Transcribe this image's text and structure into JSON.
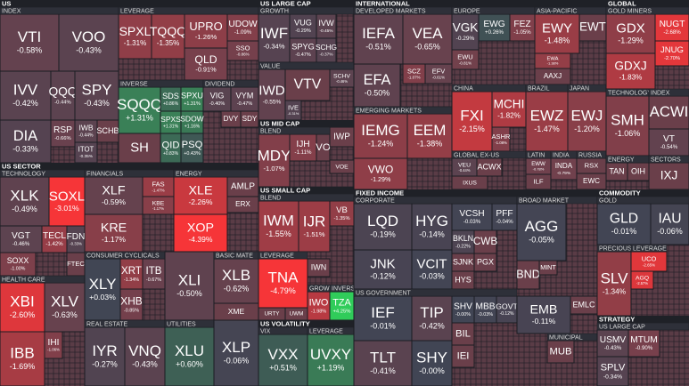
{
  "chart_data": {
    "type": "treemap",
    "sections": [
      {
        "title": "US",
        "groups": [
          {
            "name": "INDEX",
            "tiles": [
              {
                "ticker": "VTI",
                "change": "-0.58%"
              },
              {
                "ticker": "VOO",
                "change": "-0.43%"
              },
              {
                "ticker": "IVV",
                "change": "-0.42%"
              },
              {
                "ticker": "QQQ",
                "change": "-0.44%"
              },
              {
                "ticker": "SPY",
                "change": "-0.43%"
              },
              {
                "ticker": "DIA",
                "change": "-0.33%"
              },
              {
                "ticker": "RSP",
                "change": "-0.66%"
              },
              {
                "ticker": "IWB",
                "change": "-0.44%"
              },
              {
                "ticker": "SCHB"
              },
              {
                "ticker": "ITOT",
                "change": "-0.35%"
              }
            ]
          },
          {
            "name": "LEVERAGE",
            "tiles": [
              {
                "ticker": "SPXL",
                "change": "-1.31%"
              },
              {
                "ticker": "TQQQ",
                "change": "-1.35%"
              },
              {
                "ticker": "UPRO",
                "change": "-1.26%"
              },
              {
                "ticker": "UDOW",
                "change": "-1.09%"
              },
              {
                "ticker": "QLD",
                "change": "-0.91%"
              },
              {
                "ticker": "SSO",
                "change": "-0.86%"
              }
            ]
          },
          {
            "name": "INVERSE",
            "tiles": [
              {
                "ticker": "SQQQ",
                "change": "+1.31%"
              },
              {
                "ticker": "SH"
              },
              {
                "ticker": "SDS",
                "change": "+0.86%"
              },
              {
                "ticker": "SPXU",
                "change": "+1.31%"
              },
              {
                "ticker": "SPXS",
                "change": "+1.31%"
              },
              {
                "ticker": "SDOW",
                "change": "+1.16%"
              },
              {
                "ticker": "QID",
                "change": "+0.83%"
              },
              {
                "ticker": "PSQ",
                "change": "+0.43%"
              }
            ]
          },
          {
            "name": "DIVIDEND",
            "tiles": [
              {
                "ticker": "VIG",
                "change": "-0.40%"
              },
              {
                "ticker": "VYM",
                "change": "-0.47%"
              },
              {
                "ticker": "DVY"
              },
              {
                "ticker": "SDY"
              }
            ]
          }
        ]
      },
      {
        "title": "US SECTOR",
        "groups": [
          {
            "name": "TECHNOLOGY",
            "tiles": [
              {
                "ticker": "XLK",
                "change": "-0.49%"
              },
              {
                "ticker": "SOXL",
                "change": "-3.01%"
              },
              {
                "ticker": "VGT",
                "change": "-0.46%"
              },
              {
                "ticker": "TECL",
                "change": "-1.42%"
              },
              {
                "ticker": "FDN",
                "change": "-0.33%"
              },
              {
                "ticker": "SOXX",
                "change": "-1.00%"
              },
              {
                "ticker": "FTEC"
              }
            ]
          },
          {
            "name": "FINANCIALS",
            "tiles": [
              {
                "ticker": "XLF",
                "change": "-0.59%"
              },
              {
                "ticker": "KRE",
                "change": "-1.17%"
              },
              {
                "ticker": "FAS",
                "change": "-1.47%"
              },
              {
                "ticker": "KBE",
                "change": "-1.17%"
              }
            ]
          },
          {
            "name": "ENERGY",
            "tiles": [
              {
                "ticker": "XLE",
                "change": "-2.26%"
              },
              {
                "ticker": "XOP",
                "change": "-4.39%"
              },
              {
                "ticker": "AMLP"
              },
              {
                "ticker": "ERX"
              }
            ]
          },
          {
            "name": "HEALTH CARE",
            "tiles": [
              {
                "ticker": "XBI",
                "change": "-2.60%"
              },
              {
                "ticker": "XLV",
                "change": "-0.63%"
              },
              {
                "ticker": "IBB",
                "change": "-1.69%"
              },
              {
                "ticker": "IHI",
                "change": "-1.06%"
              }
            ]
          },
          {
            "name": "CONSUMER CYCLICALS",
            "tiles": [
              {
                "ticker": "XLY",
                "change": "+0.03%"
              },
              {
                "ticker": "XRT",
                "change": "-1.34%"
              },
              {
                "ticker": "ITB",
                "change": "-0.67%"
              },
              {
                "ticker": "XHB",
                "change": "-0.85%"
              }
            ]
          },
          {
            "tiles": [
              {
                "ticker": "XLI",
                "change": "-0.50%"
              }
            ]
          },
          {
            "name": "BASIC MATE",
            "tiles": [
              {
                "ticker": "XLB",
                "change": "-0.62%"
              },
              {
                "ticker": "XME"
              }
            ]
          },
          {
            "name": "REAL ESTATE",
            "tiles": [
              {
                "ticker": "IYR",
                "change": "-0.27%"
              },
              {
                "ticker": "VNQ",
                "change": "-0.43%"
              }
            ]
          },
          {
            "name": "UTILITIES",
            "tiles": [
              {
                "ticker": "XLU",
                "change": "+0.60%"
              }
            ]
          },
          {
            "tiles": [
              {
                "ticker": "XLP",
                "change": "-0.06%"
              }
            ]
          }
        ]
      },
      {
        "title": "US LARGE CAP",
        "groups": [
          {
            "name": "GROWTH",
            "tiles": [
              {
                "ticker": "IWF",
                "change": "-0.34%"
              },
              {
                "ticker": "VUG",
                "change": "-0.29%"
              },
              {
                "ticker": "IVW",
                "change": "-0.45%"
              },
              {
                "ticker": "SPYG",
                "change": "-0.47%"
              },
              {
                "ticker": "SCHG",
                "change": "-0.37%"
              }
            ]
          },
          {
            "name": "VALUE",
            "tiles": [
              {
                "ticker": "IWD",
                "change": "-0.55%"
              },
              {
                "ticker": "VTV"
              },
              {
                "ticker": "IVE",
                "change": "-0.31%"
              },
              {
                "ticker": "SCHV",
                "change": "-0.46%"
              }
            ]
          }
        ]
      },
      {
        "title": "US MID CAP",
        "groups": [
          {
            "name": "BLEND",
            "tiles": [
              {
                "ticker": "MDY",
                "change": "-1.07%"
              },
              {
                "ticker": "IJH",
                "change": "-1.11%"
              },
              {
                "ticker": "VO"
              },
              {
                "ticker": "IWP"
              },
              {
                "ticker": "VOE"
              }
            ]
          }
        ]
      },
      {
        "title": "US SMALL CAP",
        "groups": [
          {
            "name": "BLEND",
            "tiles": [
              {
                "ticker": "IWM",
                "change": "-1.55%"
              },
              {
                "ticker": "IJR",
                "change": "-1.51%"
              },
              {
                "ticker": "VB",
                "change": "-1.35%"
              }
            ]
          },
          {
            "name": "LEVERAGE",
            "tiles": [
              {
                "ticker": "TNA",
                "change": "-4.79%"
              },
              {
                "ticker": "URTY"
              },
              {
                "ticker": "UWM"
              }
            ]
          },
          {
            "tiles": [
              {
                "ticker": "IWN"
              }
            ]
          },
          {
            "name": "GROWTH",
            "tiles": [
              {
                "ticker": "IWO",
                "change": "-1.98%"
              }
            ]
          },
          {
            "name": "INVERS",
            "tiles": [
              {
                "ticker": "TZA",
                "change": "+4.25%"
              }
            ]
          }
        ]
      },
      {
        "title": "US VOLATILITY",
        "groups": [
          {
            "name": "VIX",
            "tiles": [
              {
                "ticker": "VXX",
                "change": "+0.51%"
              }
            ]
          },
          {
            "name": "LEVERAGE",
            "tiles": [
              {
                "ticker": "UVXY",
                "change": "+1.19%"
              }
            ]
          }
        ]
      },
      {
        "title": "INTERNATIONAL",
        "groups": [
          {
            "name": "DEVELOPED MARKETS",
            "tiles": [
              {
                "ticker": "IEFA",
                "change": "-0.51%"
              },
              {
                "ticker": "VEA",
                "change": "-0.65%"
              },
              {
                "ticker": "EFA",
                "change": "-0.50%"
              },
              {
                "ticker": "SCZ",
                "change": "-1.07%"
              },
              {
                "ticker": "EFV",
                "change": "-0.61%"
              }
            ]
          },
          {
            "name": "EMERGING MARKETS",
            "tiles": [
              {
                "ticker": "IEMG",
                "change": "-1.24%"
              },
              {
                "ticker": "EEM",
                "change": "-1.38%"
              },
              {
                "ticker": "VWO",
                "change": "-1.29%"
              }
            ]
          },
          {
            "name": "EUROPE",
            "tiles": [
              {
                "ticker": "VGK",
                "change": "-0.29%"
              },
              {
                "ticker": "EWG",
                "change": "+0.26%"
              },
              {
                "ticker": "FEZ",
                "change": "-1.05%"
              },
              {
                "ticker": "EWU",
                "change": "-0.81%"
              }
            ]
          },
          {
            "name": "ASIA-PACIFIC",
            "tiles": [
              {
                "ticker": "EWY",
                "change": "-1.48%"
              },
              {
                "ticker": "EWT"
              },
              {
                "ticker": "EWA",
                "change": "-1.38%"
              },
              {
                "ticker": "AAXJ"
              }
            ]
          },
          {
            "name": "CHINA",
            "tiles": [
              {
                "ticker": "FXI",
                "change": "-2.15%"
              },
              {
                "ticker": "MCHI",
                "change": "-1.82%"
              },
              {
                "ticker": "ASHR",
                "change": "-1.08%"
              }
            ]
          },
          {
            "name": "BRAZIL",
            "tiles": [
              {
                "ticker": "EWZ",
                "change": "-1.47%"
              }
            ]
          },
          {
            "name": "JAPAN",
            "tiles": [
              {
                "ticker": "EWJ",
                "change": "-1.20%"
              }
            ]
          },
          {
            "name": "GLOBAL EX-US",
            "tiles": [
              {
                "ticker": "VEU",
                "change": "-0.44%"
              },
              {
                "ticker": "ACWX"
              },
              {
                "ticker": "IXUS"
              }
            ]
          },
          {
            "name": "LATIN",
            "tiles": [
              {
                "ticker": "EWW",
                "change": "-0.78%"
              },
              {
                "ticker": "ILF"
              }
            ]
          },
          {
            "name": "INDIA",
            "tiles": [
              {
                "ticker": "INDA",
                "change": "-0.79%"
              }
            ]
          },
          {
            "name": "RUSSIA",
            "tiles": [
              {
                "ticker": "RSX"
              },
              {
                "ticker": "EWC"
              }
            ]
          }
        ]
      },
      {
        "title": "FIXED INCOME",
        "groups": [
          {
            "name": "CORPORATE",
            "tiles": [
              {
                "ticker": "LQD",
                "change": "-0.19%"
              },
              {
                "ticker": "JNK",
                "change": "-0.12%"
              },
              {
                "ticker": "HYG",
                "change": "-0.14%"
              },
              {
                "ticker": "VCIT",
                "change": "-0.03%"
              },
              {
                "ticker": "VCSH",
                "change": "-0.03%"
              },
              {
                "ticker": "PFF",
                "change": "-0.04%"
              },
              {
                "ticker": "BKLN",
                "change": "-0.22%"
              },
              {
                "ticker": "CWB"
              },
              {
                "ticker": "SJNK"
              },
              {
                "ticker": "PGX"
              },
              {
                "ticker": "HYS"
              }
            ]
          },
          {
            "name": "BROAD MARKET",
            "tiles": [
              {
                "ticker": "AGG",
                "change": "-0.05%"
              },
              {
                "ticker": "BND"
              },
              {
                "ticker": "MINT"
              }
            ]
          },
          {
            "name": "US GOVERNMENT",
            "tiles": [
              {
                "ticker": "IEF",
                "change": "-0.01%"
              },
              {
                "ticker": "TLT",
                "change": "-0.41%"
              },
              {
                "ticker": "TIP",
                "change": "-0.42%"
              },
              {
                "ticker": "SHY",
                "change": "-0.00%"
              },
              {
                "ticker": "SHV",
                "change": "-0.00%"
              },
              {
                "ticker": "MBB",
                "change": "-0.03%"
              },
              {
                "ticker": "GOVT",
                "change": "-0.12%"
              },
              {
                "ticker": "BIL"
              },
              {
                "ticker": "IEI"
              }
            ]
          },
          {
            "tiles": [
              {
                "ticker": "EMB",
                "change": "-0.11%"
              },
              {
                "ticker": "EMLC"
              }
            ]
          },
          {
            "name": "MUNICIPAL",
            "tiles": [
              {
                "ticker": "MUB"
              }
            ]
          }
        ]
      },
      {
        "title": "GLOBAL",
        "groups": [
          {
            "name": "GOLD MINERS",
            "tiles": [
              {
                "ticker": "GDX",
                "change": "-1.29%"
              },
              {
                "ticker": "GDXJ",
                "change": "-1.83%"
              },
              {
                "ticker": "NUGT",
                "change": "-2.68%"
              },
              {
                "ticker": "JNUG",
                "change": "-2.70%"
              }
            ]
          },
          {
            "name": "TECHNOLOGY",
            "tiles": [
              {
                "ticker": "SMH",
                "change": "-1.06%"
              }
            ]
          },
          {
            "name": "INDEX",
            "tiles": [
              {
                "ticker": "ACWI"
              },
              {
                "ticker": "VT",
                "change": "-0.54%"
              }
            ]
          },
          {
            "name": "ENERGY",
            "tiles": [
              {
                "ticker": "TAN"
              },
              {
                "ticker": "OIH"
              }
            ]
          },
          {
            "name": "SECTORS",
            "tiles": [
              {
                "ticker": "IXJ"
              }
            ]
          }
        ]
      },
      {
        "title": "COMMODITY",
        "groups": [
          {
            "name": "GOLD",
            "tiles": [
              {
                "ticker": "GLD",
                "change": "-0.01%"
              },
              {
                "ticker": "IAU",
                "change": "-0.06%"
              }
            ]
          },
          {
            "name": "PRECIOUS",
            "tiles": [
              {
                "ticker": "SLV",
                "change": "-1.34%"
              }
            ]
          },
          {
            "name": "LEVERAGE",
            "tiles": [
              {
                "ticker": "UCO",
                "change": "-2.65%"
              },
              {
                "ticker": "AGQ",
                "change": "-2.57%"
              }
            ]
          }
        ]
      },
      {
        "title": "STRATEGY",
        "groups": [
          {
            "name": "US LARGE CAP",
            "tiles": [
              {
                "ticker": "USMV",
                "change": "-0.43%"
              },
              {
                "ticker": "MTUM",
                "change": "-0.90%"
              },
              {
                "ticker": "SPLV",
                "change": "-0.34%"
              }
            ]
          }
        ]
      }
    ]
  }
}
